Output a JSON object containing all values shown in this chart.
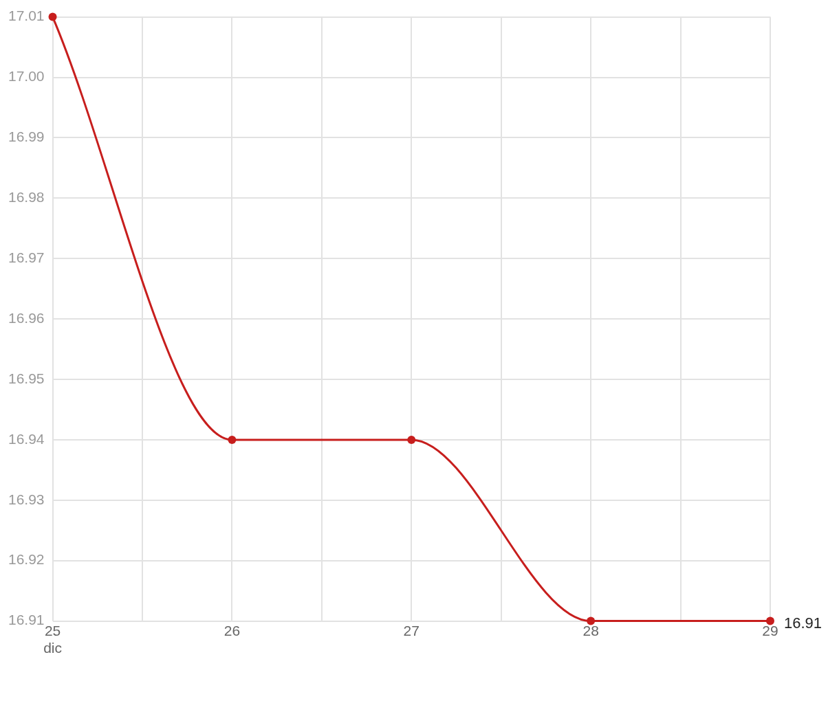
{
  "chart_data": {
    "type": "line",
    "x": [
      "--12-25",
      "--12-26",
      "--12-27",
      "--12-28",
      "--12-29"
    ],
    "series": [
      {
        "color": "#c71e1d",
        "values": [
          17.01,
          16.94,
          16.94,
          16.91,
          16.91
        ],
        "value_labels": [
          null,
          null,
          null,
          null,
          "16.91"
        ]
      }
    ],
    "xlim": [
      "--12-25",
      "--12-29"
    ],
    "xticks": [
      {
        "value": "--12-25",
        "label": "25\ndic"
      },
      {
        "value": "--12-25T12:00",
        "label": null
      },
      {
        "value": "--12-26",
        "label": "26"
      },
      {
        "value": "--12-26T12:00",
        "label": null
      },
      {
        "value": "--12-27",
        "label": "27"
      },
      {
        "value": "--12-27T12:00",
        "label": null
      },
      {
        "value": "--12-28",
        "label": "28"
      },
      {
        "value": "--12-28T12:00",
        "label": null
      },
      {
        "value": "--12-29",
        "label": "29"
      }
    ],
    "ylim": [
      16.91,
      17.01
    ],
    "yticks": [
      16.91,
      16.92,
      16.93,
      16.94,
      16.95,
      16.96,
      16.97,
      16.98,
      16.99,
      {
        "value": 17,
        "label": "17.00"
      },
      17.01
    ],
    "grid": true,
    "legend": false,
    "marker": "circle",
    "line_style": "solid"
  }
}
